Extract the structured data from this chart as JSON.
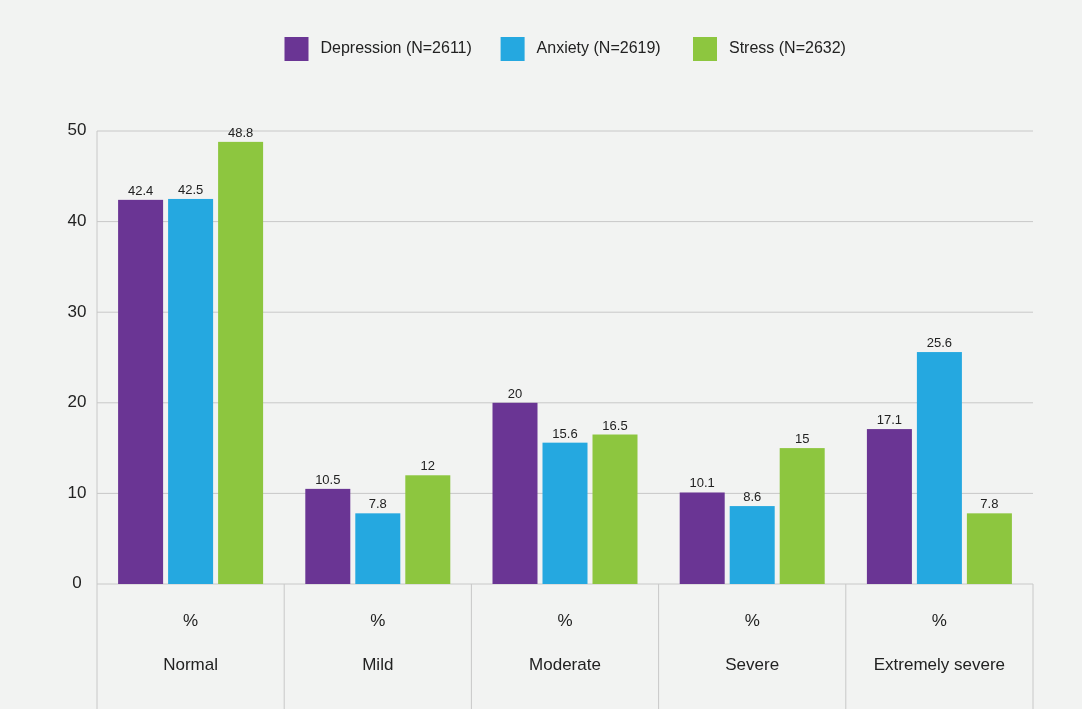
{
  "chart_data": {
    "type": "bar",
    "categories": [
      "Normal",
      "Mild",
      "Moderate",
      "Severe",
      "Extremely severe"
    ],
    "series": [
      {
        "name": "Depression (N=2611)",
        "color": "#6a3594",
        "values": [
          42.4,
          10.5,
          20,
          10.1,
          17.1
        ]
      },
      {
        "name": "Anxiety (N=2619)",
        "color": "#25a8e0",
        "values": [
          42.5,
          7.8,
          15.6,
          8.6,
          25.6
        ]
      },
      {
        "name": "Stress (N=2632)",
        "color": "#8dc63f",
        "values": [
          48.8,
          12,
          16.5,
          15,
          7.8
        ]
      }
    ],
    "ylim": [
      0,
      50
    ],
    "yticks": [
      0,
      10,
      20,
      30,
      40,
      50
    ],
    "grid": "y",
    "legend": "top",
    "data_labels": true,
    "annotations": [
      "%",
      "%",
      "%",
      "%",
      "%"
    ]
  }
}
